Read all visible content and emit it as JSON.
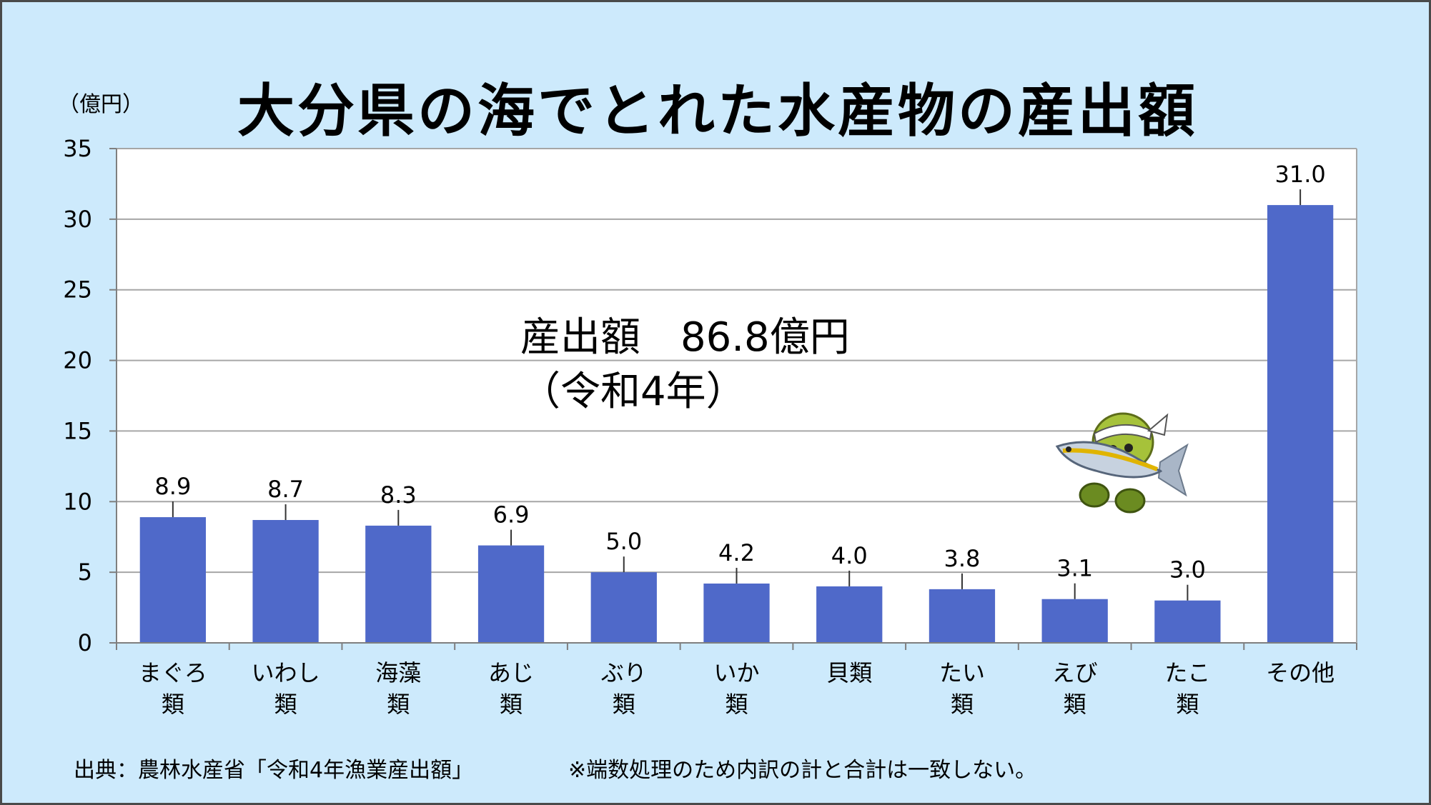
{
  "chart_data": {
    "type": "bar",
    "title": "大分県の海でとれた水産物の産出額",
    "ylabel": "（億円）",
    "ylim": [
      0,
      35
    ],
    "yticks": [
      0,
      5,
      10,
      15,
      20,
      25,
      30,
      35
    ],
    "grid": true,
    "categories": [
      [
        "まぐろ",
        "類"
      ],
      [
        "いわし",
        "類"
      ],
      [
        "海藻",
        "類"
      ],
      [
        "あじ",
        "類"
      ],
      [
        "ぶり",
        "類"
      ],
      [
        "いか",
        "類"
      ],
      [
        "貝類"
      ],
      [
        "たい",
        "類"
      ],
      [
        "えび",
        "類"
      ],
      [
        "たこ",
        "類"
      ],
      [
        "その他"
      ]
    ],
    "values": [
      8.9,
      8.7,
      8.3,
      6.9,
      5.0,
      4.2,
      4.0,
      3.8,
      3.1,
      3.0,
      31.0
    ],
    "value_labels": [
      "8.9",
      "8.7",
      "8.3",
      "6.9",
      "5.0",
      "4.2",
      "4.0",
      "3.8",
      "3.1",
      "3.0",
      "31.0"
    ],
    "bar_color": "#4f69c9"
  },
  "annotation": {
    "line1": "産出額　86.8億円",
    "line2": "（令和4年）"
  },
  "footer": {
    "source": "出典：農林水産省「令和4年漁業産出額」",
    "note": "※端数処理のため内訳の計と合計は一致しない。"
  },
  "mascot_icon": "fish-mascot-icon"
}
